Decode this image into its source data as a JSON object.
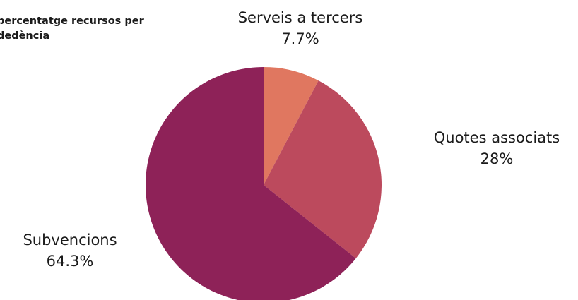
{
  "chart_data": {
    "type": "pie",
    "title": "percentatge recursos per\ndedència",
    "slices": [
      {
        "label": "Serveis a tercers",
        "value": 7.7,
        "display": "7.7%",
        "color": "#e07760"
      },
      {
        "label": "Quotes associats",
        "value": 28,
        "display": "28%",
        "color": "#bc4a5d"
      },
      {
        "label": "Subvencions",
        "value": 64.3,
        "display": "64.3%",
        "color": "#8e2258"
      }
    ],
    "legend": "none",
    "start_angle": "12 o'clock",
    "direction": "clockwise"
  }
}
